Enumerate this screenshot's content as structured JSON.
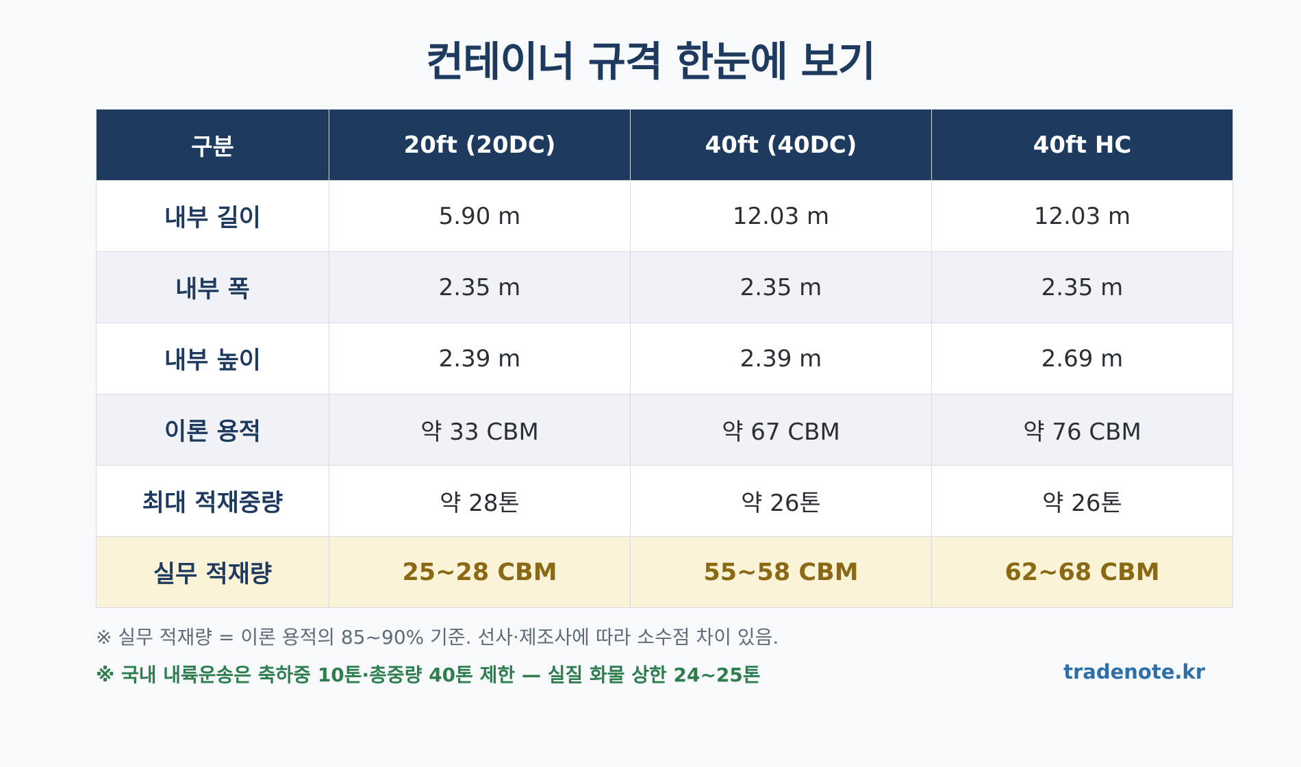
{
  "title": "컨테이너 규격 한눈에 보기",
  "table": {
    "headers": [
      "구분",
      "20ft (20DC)",
      "40ft (40DC)",
      "40ft HC"
    ],
    "rows": [
      {
        "label": "내부 길이",
        "values": [
          "5.90 m",
          "12.03 m",
          "12.03 m"
        ]
      },
      {
        "label": "내부 폭",
        "values": [
          "2.35 m",
          "2.35 m",
          "2.35 m"
        ]
      },
      {
        "label": "내부 높이",
        "values": [
          "2.39 m",
          "2.39 m",
          "2.69 m"
        ]
      },
      {
        "label": "이론 용적",
        "values": [
          "약 33 CBM",
          "약 67 CBM",
          "약 76 CBM"
        ]
      },
      {
        "label": "최대 적재중량",
        "values": [
          "약 28톤",
          "약 26톤",
          "약 26톤"
        ]
      },
      {
        "label": "실무 적재량",
        "values": [
          "25~28 CBM",
          "55~58 CBM",
          "62~68 CBM"
        ]
      }
    ]
  },
  "notes": {
    "note1": "※ 실무 적재량 = 이론 용적의 85~90% 기준. 선사·제조사에 따라 소수점 차이 있음.",
    "note2": "※ 국내 내륙운송은 축하중 10톤·총중량 40톤 제한 — 실질 화물 상한 24~25톤"
  },
  "brand": "tradenote.kr",
  "colors": {
    "header_bg": "#1e3a5f",
    "highlight_bg": "#fbf3d8",
    "highlight_text": "#8b6914",
    "note_green": "#2e7d4f",
    "brand_blue": "#2f6fa8"
  }
}
